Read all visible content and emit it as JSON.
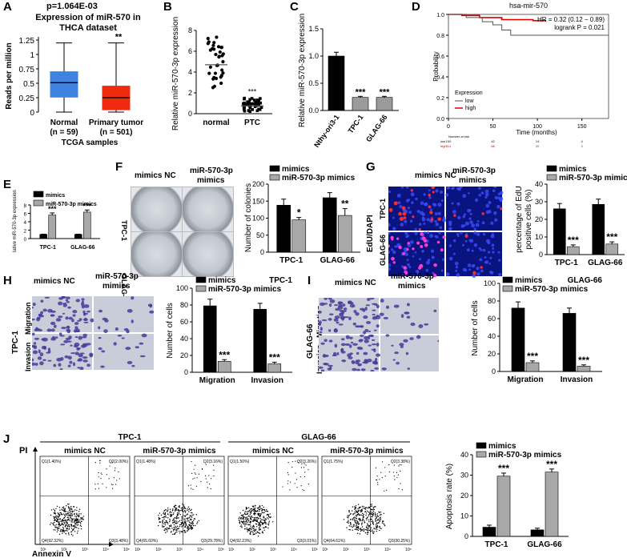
{
  "panels": {
    "A": {
      "letter": "A",
      "pvalue": "p=1.064E-03",
      "title_line1": "Expression of miR-570 in",
      "title_line2": "THCA dataset",
      "ylabel": "Reads per million",
      "xlabel": "TCGA samples",
      "sig": "**",
      "yticks": [
        "0",
        "0.25",
        "0.5",
        "0.75",
        "1",
        "1.25"
      ],
      "groups": [
        {
          "name": "Normal",
          "n": "(n = 59)",
          "color": "#3f82e0",
          "q1": 0.26,
          "median": 0.51,
          "q3": 0.7,
          "min": 0.0,
          "max": 1.2
        },
        {
          "name": "Primary tumor",
          "n": "(n = 501)",
          "color": "#f02a0c",
          "q1": 0.04,
          "median": 0.25,
          "q3": 0.45,
          "min": 0.0,
          "max": 1.2
        }
      ]
    },
    "B": {
      "letter": "B",
      "ylabel": "Relative miR-570-3p expression",
      "yticks": [
        "0",
        "2",
        "4",
        "6",
        "8"
      ],
      "categories": [
        "normal",
        "PTC"
      ],
      "means": [
        4.7,
        0.75
      ],
      "sig": "***"
    },
    "C": {
      "letter": "C",
      "ylabel": "Relative miR-570-3p expression",
      "yticks": [
        "0.0",
        "0.5",
        "1.0",
        "1.5"
      ],
      "categories": [
        "Nthy-ori3-1",
        "TPC-1",
        "GLAG-66"
      ],
      "values": [
        1.0,
        0.24,
        0.24
      ],
      "errors": [
        0.07,
        0.02,
        0.02
      ],
      "sig": [
        "",
        "***",
        "***"
      ]
    },
    "D": {
      "letter": "D",
      "title": "hsa-mir-570",
      "hr": "HR = 0.32 (0.12 − 0.89)",
      "logrank": "logrank P = 0.021",
      "ylabel": "Probability",
      "xlabel": "Time (months)",
      "yticks": [
        "0.0",
        "0.2",
        "0.4",
        "0.6",
        "0.8",
        "1.0"
      ],
      "xticks": [
        "0",
        "50",
        "100",
        "150"
      ],
      "legend_title": "Expression",
      "legend": [
        "low",
        "high"
      ],
      "risk_title": "Number at risk",
      "risk_rows": [
        {
          "label": "low",
          "values": [
            "100",
            "42",
            "14",
            "4"
          ]
        },
        {
          "label": "high",
          "values": [
            "311",
            "88",
            "20",
            "3"
          ]
        }
      ]
    },
    "E": {
      "letter": "E",
      "ylabel": "Relative miR-570-3p expression",
      "yticks": [
        "0",
        "2",
        "4",
        "6",
        "8"
      ],
      "categories": [
        "TPC-1",
        "GLAG-66"
      ],
      "legend": [
        "mimics",
        "miR-570-3p mimics"
      ],
      "series_values": [
        [
          1.0,
          1.0
        ],
        [
          5.6,
          6.3
        ]
      ],
      "errors": [
        [
          0.05,
          0.05
        ],
        [
          0.5,
          0.5
        ]
      ],
      "sig": "***"
    },
    "F": {
      "letter": "F",
      "col_labels": [
        "mimics NC",
        "miR-570-3p",
        "mimics"
      ],
      "row_labels": [
        "TPC-1",
        "GLAG-66"
      ],
      "ylabel": "Number of colonies",
      "yticks": [
        "0",
        "50",
        "100",
        "150",
        "200"
      ],
      "categories": [
        "TPC-1",
        "GLAG-66"
      ],
      "legend": [
        "mimics",
        "miR-570-3p mimics"
      ],
      "series_values": [
        [
          138,
          160
        ],
        [
          95,
          108
        ]
      ],
      "errors": [
        [
          18,
          15
        ],
        [
          7,
          20
        ]
      ],
      "sig": [
        "*",
        "**"
      ]
    },
    "G": {
      "letter": "G",
      "col_labels": [
        "mimics NC",
        "miR-570-3p",
        "mimics"
      ],
      "side_label": "EdU/DAPI",
      "row_labels": [
        "TPC-1",
        "GLAG-66"
      ],
      "ylabel_line1": "percentage of EdU",
      "ylabel_line2": "positive cells (%)",
      "yticks": [
        "0",
        "10",
        "20",
        "30",
        "40"
      ],
      "categories": [
        "TPC-1",
        "GLAG-66"
      ],
      "legend": [
        "mimics",
        "miR-570-3p mimics"
      ],
      "series_values": [
        [
          26,
          28.5
        ],
        [
          4.5,
          6
        ]
      ],
      "errors": [
        [
          3,
          3
        ],
        [
          1,
          1.2
        ]
      ],
      "sig": "***"
    },
    "H": {
      "letter": "H",
      "col_labels": [
        "mimics NC",
        "miR-570-3p",
        "mimics"
      ],
      "side_label": "TPC-1",
      "row_labels": [
        "Migration",
        "Invasion"
      ],
      "ylabel": "Number of cells",
      "yticks": [
        "0",
        "20",
        "40",
        "60",
        "80",
        "100"
      ],
      "categories": [
        "Migration",
        "Invasion"
      ],
      "legend": [
        "mimics",
        "miR-570-3p mimics"
      ],
      "legend_title": "TPC-1",
      "series_values": [
        [
          79,
          75
        ],
        [
          13,
          10
        ]
      ],
      "errors": [
        [
          8,
          7
        ],
        [
          2,
          2
        ]
      ],
      "sig": "***"
    },
    "I": {
      "letter": "I",
      "col_labels": [
        "mimics NC",
        "miR-570-3p",
        "mimics"
      ],
      "side_label": "GLAG-66",
      "row_labels": [
        "Migration",
        "Invasion"
      ],
      "ylabel": "Number of cells",
      "yticks": [
        "0",
        "20",
        "40",
        "60",
        "80",
        "100"
      ],
      "categories": [
        "Migration",
        "Invasion"
      ],
      "legend": [
        "mimics",
        "miR-570-3p mimics"
      ],
      "legend_title": "GLAG-66",
      "series_values": [
        [
          72,
          66
        ],
        [
          10,
          6
        ]
      ],
      "errors": [
        [
          7,
          6
        ],
        [
          2,
          1.5
        ]
      ],
      "sig": "***"
    },
    "J": {
      "letter": "J",
      "group_labels": [
        "TPC-1",
        "GLAG-66"
      ],
      "col_labels": [
        "mimics NC",
        "miR-570-3p mimics",
        "mimics NC",
        "miR-570-3p mimics"
      ],
      "yaxis": "PI",
      "xaxis": "Annexin V",
      "quadrants": [
        {
          "q1": "Q1(1.40%)",
          "q2": "Q2(2.00%)",
          "q3": "Q3(3.48%)",
          "q4": "Q4(92.32%)"
        },
        {
          "q1": "Q1(1.48%)",
          "q2": "Q2(3.16%)",
          "q3": "Q3(29.78%)",
          "q4": "Q4(65.60%)"
        },
        {
          "q1": "Q1(1.50%)",
          "q2": "Q2(3.26%)",
          "q3": "Q3(3.01%)",
          "q4": "Q4(92.23%)"
        },
        {
          "q1": "Q1(1.75%)",
          "q2": "Q2(3.38%)",
          "q3": "Q3(30.25%)",
          "q4": "Q4(64.61%)"
        }
      ],
      "scale_ticks": [
        "10¹",
        "10²",
        "10³",
        "10⁴",
        "10⁵"
      ],
      "ylabel": "Apoptosis rate (%)",
      "yticks": [
        "0",
        "10",
        "20",
        "30",
        "40"
      ],
      "categories": [
        "TPC-1",
        "GLAG-66"
      ],
      "legend": [
        "mimics",
        "miR-570-3p mimics"
      ],
      "series_values": [
        [
          4.5,
          3.2
        ],
        [
          29.5,
          31.5
        ]
      ],
      "errors": [
        [
          1,
          0.8
        ],
        [
          1.5,
          1.5
        ]
      ],
      "sig": "***"
    }
  },
  "chart_data": [
    {
      "type": "bar",
      "panel": "C",
      "categories": [
        "Nthy-ori3-1",
        "TPC-1",
        "GLAG-66"
      ],
      "values": [
        1.0,
        0.24,
        0.24
      ],
      "ylabel": "Relative miR-570-3p expression",
      "ylim": [
        0,
        1.5
      ]
    },
    {
      "type": "bar",
      "panel": "E",
      "categories": [
        "TPC-1",
        "GLAG-66"
      ],
      "series": [
        {
          "name": "mimics",
          "values": [
            1.0,
            1.0
          ]
        },
        {
          "name": "miR-570-3p mimics",
          "values": [
            5.6,
            6.3
          ]
        }
      ],
      "ylim": [
        0,
        8
      ]
    },
    {
      "type": "bar",
      "panel": "F",
      "categories": [
        "TPC-1",
        "GLAG-66"
      ],
      "series": [
        {
          "name": "mimics",
          "values": [
            138,
            160
          ]
        },
        {
          "name": "miR-570-3p mimics",
          "values": [
            95,
            108
          ]
        }
      ],
      "ylabel": "Number of colonies",
      "ylim": [
        0,
        200
      ]
    },
    {
      "type": "bar",
      "panel": "G",
      "categories": [
        "TPC-1",
        "GLAG-66"
      ],
      "series": [
        {
          "name": "mimics",
          "values": [
            26,
            28.5
          ]
        },
        {
          "name": "miR-570-3p mimics",
          "values": [
            4.5,
            6
          ]
        }
      ],
      "ylim": [
        0,
        40
      ]
    },
    {
      "type": "bar",
      "panel": "H",
      "categories": [
        "Migration",
        "Invasion"
      ],
      "series": [
        {
          "name": "mimics",
          "values": [
            79,
            75
          ]
        },
        {
          "name": "miR-570-3p mimics",
          "values": [
            13,
            10
          ]
        }
      ],
      "ylabel": "Number of cells",
      "ylim": [
        0,
        100
      ]
    },
    {
      "type": "bar",
      "panel": "I",
      "categories": [
        "Migration",
        "Invasion"
      ],
      "series": [
        {
          "name": "mimics",
          "values": [
            72,
            66
          ]
        },
        {
          "name": "miR-570-3p mimics",
          "values": [
            10,
            6
          ]
        }
      ],
      "ylabel": "Number of cells",
      "ylim": [
        0,
        100
      ]
    },
    {
      "type": "bar",
      "panel": "J",
      "categories": [
        "TPC-1",
        "GLAG-66"
      ],
      "series": [
        {
          "name": "mimics",
          "values": [
            4.5,
            3.2
          ]
        },
        {
          "name": "miR-570-3p mimics",
          "values": [
            29.5,
            31.5
          ]
        }
      ],
      "ylabel": "Apoptosis rate (%)",
      "ylim": [
        0,
        40
      ]
    }
  ]
}
